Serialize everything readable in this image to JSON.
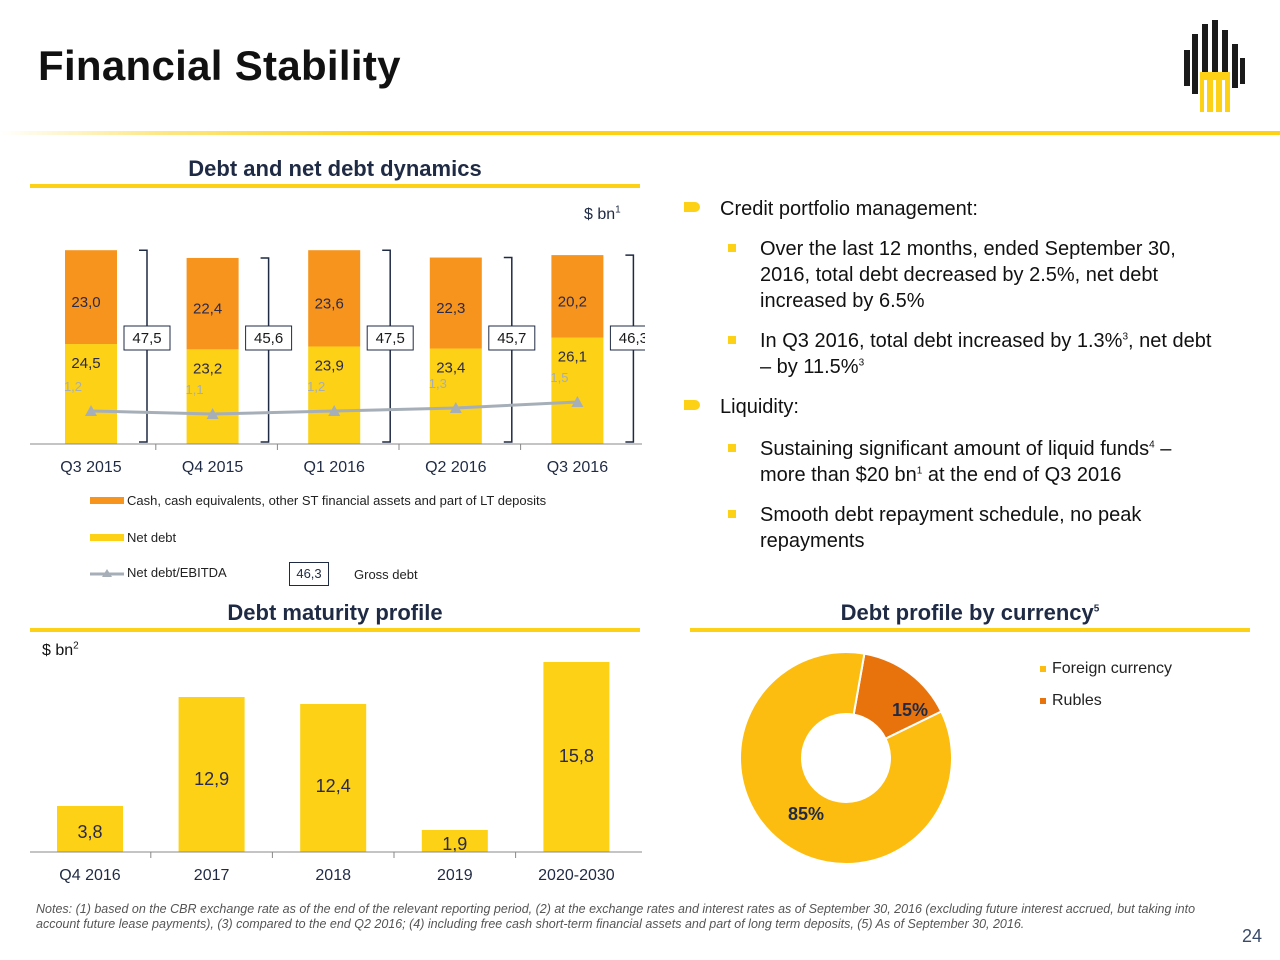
{
  "title": "Financial Stability",
  "colors": {
    "accent": "#fcd116",
    "orange": "#f7941d",
    "navy": "#1f2a44",
    "grey": "#a6afb8",
    "rubles": "#e8730c",
    "foreign": "#fdbd10"
  },
  "debt_section": {
    "title": "Debt and net debt dynamics",
    "unit": "$ bn",
    "unit_sup": "1"
  },
  "maturity_section": {
    "title": "Debt maturity profile",
    "unit": "$ bn",
    "unit_sup": "2"
  },
  "currency_section": {
    "title": "Debt profile by currency",
    "title_sup": "5"
  },
  "legend": {
    "cash": "Cash, cash equivalents, other ST financial assets and part of LT deposits",
    "net_debt": "Net debt",
    "ratio": "Net debt/EBITDA",
    "gross_box": "46,3",
    "gross_label": "Gross debt"
  },
  "bullets": {
    "credit_title": "Credit portfolio management:",
    "credit_1": "Over the last 12 months, ended September 30, 2016, total debt decreased by 2.5%, net debt increased by 6.5%",
    "credit_2a": "In Q3 2016, total debt increased by 1.3%",
    "credit_2_sup1": "3",
    "credit_2b": ", net debt – by 11.5%",
    "credit_2_sup2": "3",
    "liquidity_title": "Liquidity:",
    "liq_1a": "Sustaining significant amount of liquid funds",
    "liq_1_sup1": "4",
    "liq_1b": " – more than $20 bn",
    "liq_1_sup2": "1",
    "liq_1c": " at the end of Q3 2016",
    "liq_2": "Smooth debt repayment schedule, no peak repayments"
  },
  "chart_data": [
    {
      "type": "bar",
      "stacked": true,
      "title": "Debt and net debt dynamics",
      "ylabel": "$ bn",
      "categories": [
        "Q3 2015",
        "Q4 2015",
        "Q1 2016",
        "Q2 2016",
        "Q3 2016"
      ],
      "series": [
        {
          "name": "Net debt",
          "values": [
            24.5,
            23.2,
            23.9,
            23.4,
            26.1
          ],
          "labels": [
            "24,5",
            "23,2",
            "23,9",
            "23,4",
            "26,1"
          ]
        },
        {
          "name": "Cash, cash equivalents, other ST financial assets and part of LT deposits",
          "values": [
            23.0,
            22.4,
            23.6,
            22.3,
            20.2
          ],
          "labels": [
            "23,0",
            "22,4",
            "23,6",
            "22,3",
            "20,2"
          ]
        },
        {
          "name": "Net debt/EBITDA",
          "type": "line",
          "values": [
            1.2,
            1.1,
            1.2,
            1.3,
            1.5
          ],
          "labels": [
            "1,2",
            "1,1",
            "1,2",
            "1,3",
            "1,5"
          ]
        }
      ],
      "gross_debt": {
        "values": [
          47.5,
          45.6,
          47.5,
          45.7,
          46.3
        ],
        "labels": [
          "47,5",
          "45,6",
          "47,5",
          "45,7",
          "46,3"
        ]
      },
      "ylim": [
        0,
        50
      ],
      "ratio_ylim": [
        0,
        8
      ]
    },
    {
      "type": "bar",
      "title": "Debt maturity profile",
      "ylabel": "$ bn",
      "categories": [
        "Q4 2016",
        "2017",
        "2018",
        "2019",
        "2020-2030"
      ],
      "values": [
        3.8,
        12.9,
        12.4,
        1.9,
        15.8
      ],
      "labels": [
        "3,8",
        "12,9",
        "12,4",
        "1,9",
        "15,8"
      ],
      "tall_values": [
        3.8,
        12.9,
        12.4,
        1.9,
        15.8
      ],
      "visual_heights": [
        46,
        155,
        148,
        22,
        190
      ],
      "ylim": [
        0,
        16
      ]
    },
    {
      "type": "pie",
      "donut": true,
      "title": "Debt profile by currency",
      "slices": [
        {
          "name": "Foreign currency",
          "value": 85,
          "label": "85%"
        },
        {
          "name": "Rubles",
          "value": 15,
          "label": "15%"
        }
      ]
    }
  ],
  "notes": "Notes: (1) based on the CBR exchange rate as of the end of the relevant reporting period, (2) at the exchange rates and interest rates as of September 30, 2016 (excluding future interest accrued, but taking into account future lease payments), (3) compared to the end Q2 2016; (4) including free cash short-term financial assets and part of long term deposits, (5) As of September 30, 2016.",
  "page_number": "24"
}
